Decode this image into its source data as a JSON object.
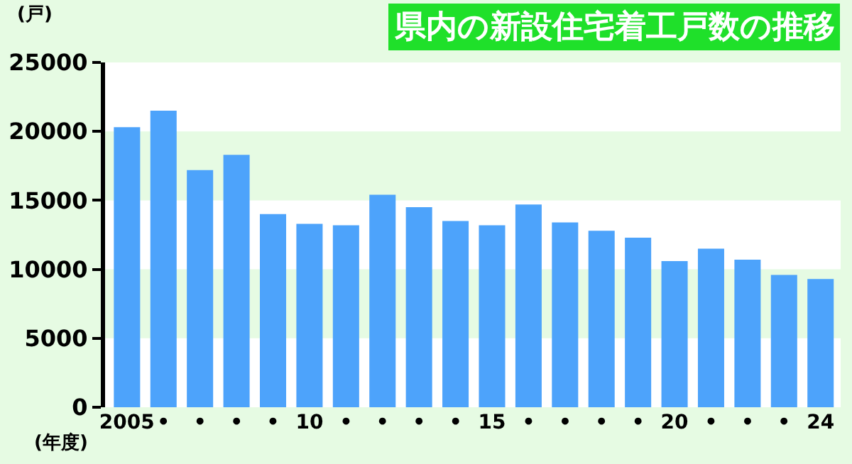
{
  "chart_data": {
    "type": "bar",
    "title": "県内の新設住宅着工戸数の推移",
    "xlabel": "(年度)",
    "ylabel": "(戸)",
    "categories": [
      "2005",
      "•",
      "•",
      "•",
      "•",
      "10",
      "•",
      "•",
      "•",
      "•",
      "15",
      "•",
      "•",
      "•",
      "•",
      "20",
      "•",
      "•",
      "•",
      "24"
    ],
    "values": [
      20300,
      21500,
      17200,
      18300,
      14000,
      13300,
      13200,
      15400,
      14500,
      13500,
      13200,
      14700,
      13400,
      12800,
      12300,
      10600,
      11500,
      10700,
      9600,
      9300
    ],
    "color": "#4da3fb",
    "ylim": [
      0,
      25000
    ],
    "yticks": [
      0,
      5000,
      10000,
      15000,
      20000,
      25000
    ],
    "bands": [
      {
        "axis": "y",
        "from": 5000,
        "to": 10000,
        "color": "#e6fbe3"
      },
      {
        "axis": "y",
        "from": 15000,
        "to": 20000,
        "color": "#e6fbe3"
      }
    ]
  }
}
